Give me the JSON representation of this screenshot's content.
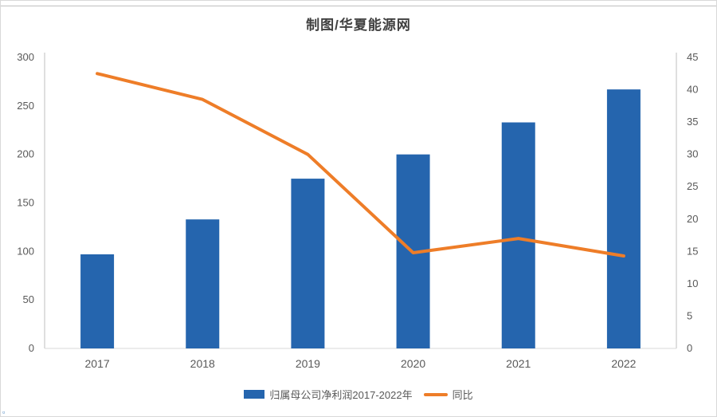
{
  "chart_data": {
    "type": "combo-bar-line",
    "title": "制图/华夏能源网",
    "categories": [
      "2017",
      "2018",
      "2019",
      "2020",
      "2021",
      "2022"
    ],
    "series": [
      {
        "name": "归属母公司净利润2017-2022年",
        "type": "bar",
        "axis": "left",
        "color": "#2565ae",
        "values": [
          97,
          133,
          175,
          200,
          233,
          267
        ]
      },
      {
        "name": "同比",
        "type": "line",
        "axis": "right",
        "color": "#ee7d28",
        "values": [
          42.5,
          38.5,
          30,
          14.8,
          17,
          14.3
        ]
      }
    ],
    "left_axis": {
      "min": 0,
      "max": 300,
      "step": 50,
      "ticks": [
        0,
        50,
        100,
        150,
        200,
        250,
        300
      ]
    },
    "right_axis": {
      "min": 0,
      "max": 45,
      "step": 5,
      "ticks": [
        0,
        5,
        10,
        15,
        20,
        25,
        30,
        35,
        40,
        45
      ]
    },
    "grid": false,
    "legend_position": "bottom",
    "axis_text_color": "#595959",
    "axis_line_color": "#bfbfbf"
  },
  "legend": {
    "bar_label": "归属母公司净利润2017-2022年",
    "line_label": "同比"
  },
  "artifact": {
    "corner_text": "▫"
  }
}
